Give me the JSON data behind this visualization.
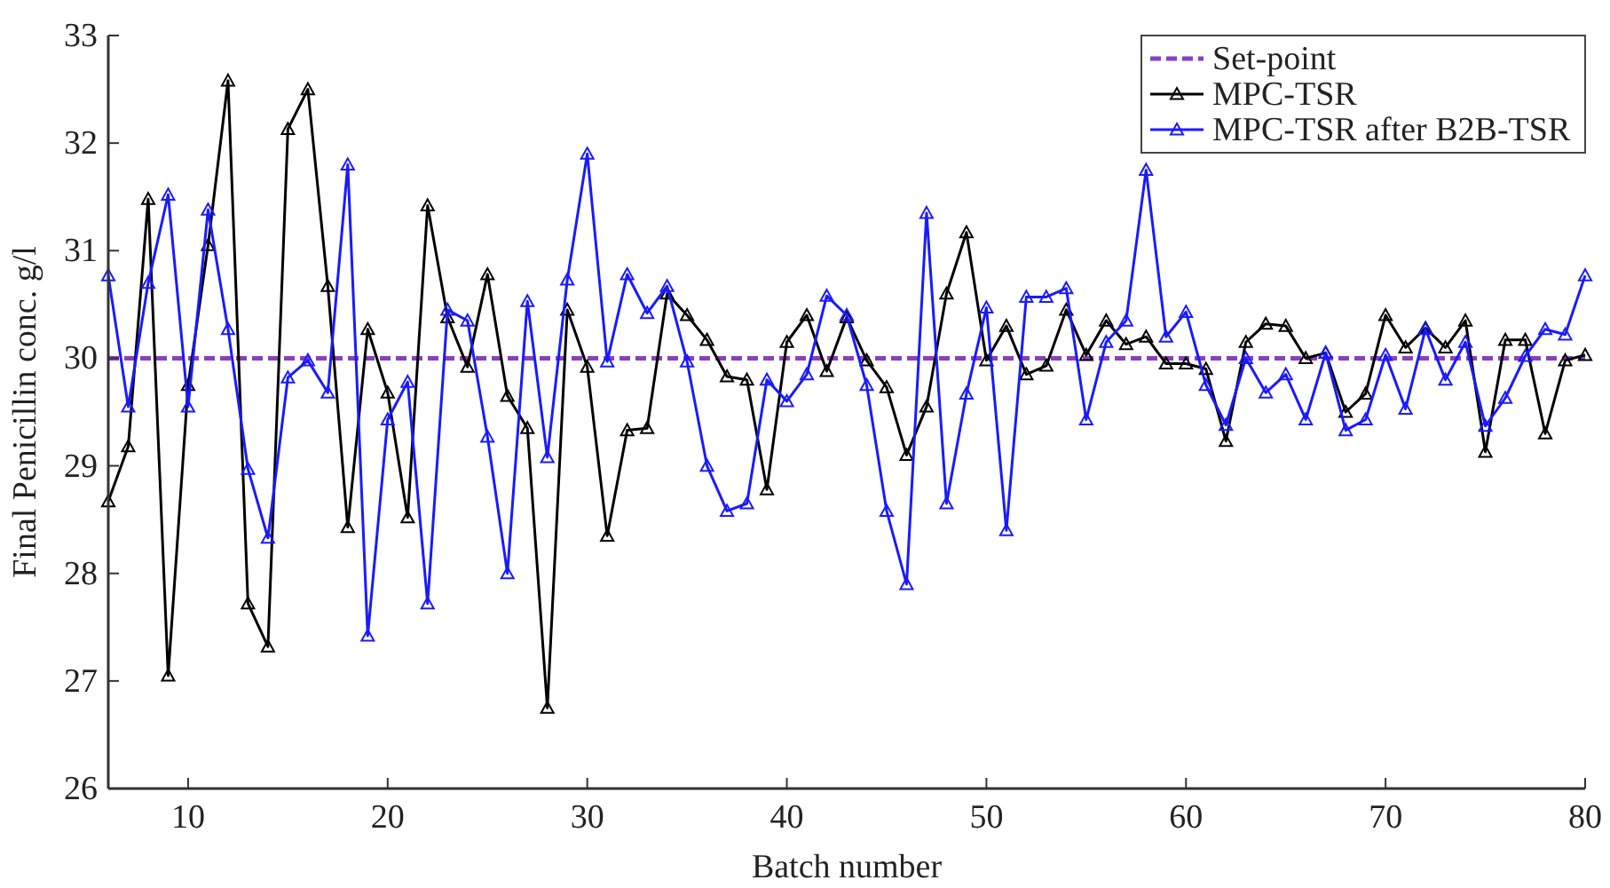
{
  "chart_data": {
    "type": "line",
    "xlabel": "Batch number",
    "ylabel": "Final Penicillin conc. g/l",
    "xlim": [
      6,
      80
    ],
    "ylim": [
      26,
      33
    ],
    "xticks": [
      10,
      20,
      30,
      40,
      50,
      60,
      70,
      80
    ],
    "yticks": [
      26,
      27,
      28,
      29,
      30,
      31,
      32,
      33
    ],
    "grid": false,
    "legend": "top right",
    "x": [
      6,
      7,
      8,
      9,
      10,
      11,
      12,
      13,
      14,
      15,
      16,
      17,
      18,
      19,
      20,
      21,
      22,
      23,
      24,
      25,
      26,
      27,
      28,
      29,
      30,
      31,
      32,
      33,
      34,
      35,
      36,
      37,
      38,
      39,
      40,
      41,
      42,
      43,
      44,
      45,
      46,
      47,
      48,
      49,
      50,
      51,
      52,
      53,
      54,
      55,
      56,
      57,
      58,
      59,
      60,
      61,
      62,
      63,
      64,
      65,
      66,
      67,
      68,
      69,
      70,
      71,
      72,
      73,
      74,
      75,
      76,
      77,
      78,
      79,
      80
    ],
    "series": [
      {
        "name": "Set-point",
        "color": "#8b3fbf",
        "x": [
          6,
          80
        ],
        "values": [
          30,
          30
        ],
        "marker": "none",
        "line_style": "dashed"
      },
      {
        "name": "MPC-TSR",
        "color": "#000000",
        "marker": "triangle",
        "line_style": "solid",
        "values": [
          28.67,
          29.18,
          31.48,
          27.05,
          29.75,
          31.05,
          32.58,
          27.72,
          27.32,
          32.13,
          32.5,
          30.67,
          28.43,
          30.27,
          29.68,
          28.52,
          31.42,
          30.38,
          29.92,
          30.78,
          29.65,
          29.35,
          26.75,
          30.45,
          29.92,
          28.35,
          29.33,
          29.35,
          30.6,
          30.4,
          30.17,
          29.83,
          29.8,
          28.78,
          30.15,
          30.4,
          29.88,
          30.38,
          29.98,
          29.73,
          29.1,
          29.55,
          30.6,
          31.17,
          29.98,
          30.3,
          29.85,
          29.93,
          30.45,
          30.03,
          30.35,
          30.13,
          30.2,
          29.95,
          29.95,
          29.9,
          29.23,
          30.15,
          30.32,
          30.3,
          30.0,
          30.05,
          29.5,
          29.67,
          30.4,
          30.1,
          30.28,
          30.1,
          30.35,
          29.13,
          30.17,
          30.17,
          29.3,
          29.98,
          30.03
        ]
      },
      {
        "name": "MPC-TSR after B2B-TSR",
        "color": "#1a1aff",
        "marker": "triangle",
        "line_style": "solid",
        "values": [
          30.77,
          29.55,
          30.7,
          31.52,
          29.55,
          31.38,
          30.27,
          28.97,
          28.33,
          29.82,
          29.98,
          29.68,
          31.8,
          27.42,
          29.43,
          29.78,
          27.72,
          30.45,
          30.35,
          29.27,
          28.0,
          30.53,
          29.08,
          30.73,
          31.9,
          29.97,
          30.78,
          30.42,
          30.67,
          29.97,
          29.0,
          28.58,
          28.65,
          29.8,
          29.6,
          29.85,
          30.58,
          30.4,
          29.75,
          28.58,
          27.9,
          31.35,
          28.65,
          29.67,
          30.47,
          28.4,
          30.57,
          30.57,
          30.65,
          29.43,
          30.15,
          30.35,
          31.75,
          30.2,
          30.43,
          29.75,
          29.38,
          30.0,
          29.68,
          29.85,
          29.43,
          30.05,
          29.33,
          29.43,
          30.03,
          29.53,
          30.27,
          29.8,
          30.15,
          29.37,
          29.63,
          30.02,
          30.27,
          30.22,
          30.77
        ]
      }
    ]
  }
}
